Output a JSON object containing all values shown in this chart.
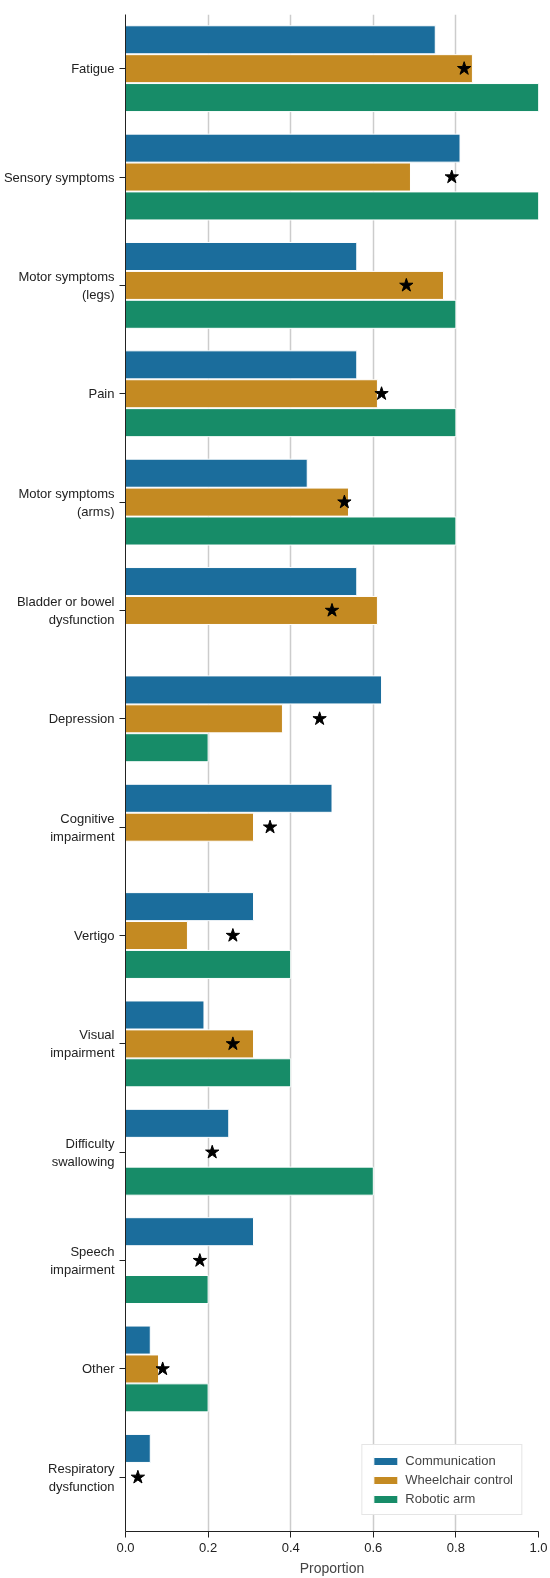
{
  "chart_data": {
    "type": "bar",
    "orientation": "horizontal",
    "xlabel": "Proportion",
    "categories": [
      "Fatigue",
      "Sensory symptoms",
      "Motor symptoms (legs)",
      "Pain",
      "Motor symptoms (arms)",
      "Bladder or bowel dysfunction",
      "Depression",
      "Cognitive impairment",
      "Vertigo",
      "Visual impairment",
      "Difficulty swallowing",
      "Speech impairment",
      "Other",
      "Respiratory dysfunction"
    ],
    "series": [
      {
        "name": "Communication",
        "color": "#1b6d9c",
        "values": [
          0.75,
          0.81,
          0.56,
          0.56,
          0.44,
          0.56,
          0.62,
          0.5,
          0.31,
          0.19,
          0.25,
          0.31,
          0.06,
          0.06
        ]
      },
      {
        "name": "Wheelchair control",
        "color": "#c48a22",
        "values": [
          0.84,
          0.69,
          0.77,
          0.61,
          0.54,
          0.61,
          0.38,
          0.31,
          0.15,
          0.31,
          null,
          null,
          0.08,
          null
        ]
      },
      {
        "name": "Robotic arm",
        "color": "#178c68",
        "values": [
          1.0,
          1.0,
          0.8,
          0.8,
          0.8,
          null,
          0.2,
          null,
          0.4,
          0.4,
          0.6,
          0.2,
          0.2,
          null
        ]
      },
      {
        "type": "scatter",
        "marker": "star",
        "color": "#000000",
        "values": [
          0.82,
          0.79,
          0.68,
          0.62,
          0.53,
          0.5,
          0.47,
          0.35,
          0.26,
          0.26,
          0.21,
          0.18,
          0.09,
          0.03
        ]
      }
    ],
    "xlim": [
      0,
      1
    ],
    "xticks": [
      {
        "value": 0,
        "label": "0.0"
      },
      {
        "value": 0.2,
        "label": "0.2"
      },
      {
        "value": 0.4,
        "label": "0.4"
      },
      {
        "value": 0.6,
        "label": "0.6"
      },
      {
        "value": 0.8,
        "label": "0.8"
      },
      {
        "value": 1,
        "label": "1.0"
      }
    ],
    "grid": "x",
    "legend": "bottom right"
  }
}
